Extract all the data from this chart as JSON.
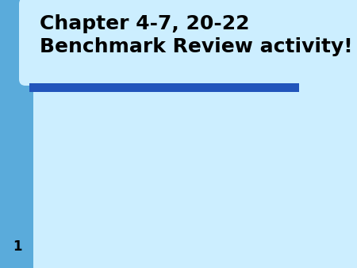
{
  "fig_width": 4.5,
  "fig_height": 3.38,
  "dpi": 100,
  "bg_color": "#5aabdb",
  "main_bg_color": "#cceeff",
  "title_box_color": "#cceeff",
  "sidebar_color": "#4a90cc",
  "title_line1": "Chapter 4-7, 20-22",
  "title_line2": "Benchmark Review activity!",
  "title_fontsize": 18,
  "title_color": "#000000",
  "bar_color": "#2255bb",
  "slide_number": "1",
  "slide_number_fontsize": 12,
  "slide_number_color": "#000000"
}
